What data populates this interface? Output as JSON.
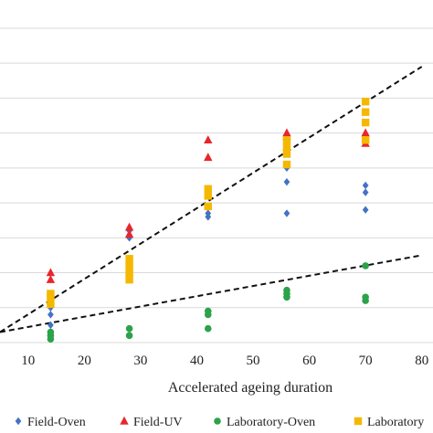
{
  "chart_data": {
    "type": "scatter",
    "title": "",
    "xlabel": "Accelerated ageing duration",
    "ylabel": "",
    "xlim": [
      5,
      82
    ],
    "ylim": [
      0,
      9.6
    ],
    "x_ticks": [
      10,
      20,
      30,
      40,
      50,
      60,
      70,
      80
    ],
    "grid": "horizontal",
    "legend_position": "bottom",
    "series": [
      {
        "name": "Field-Oven",
        "marker": "diamond",
        "color": "#4472c4",
        "points": [
          [
            14,
            1.0
          ],
          [
            14,
            0.8
          ],
          [
            14,
            0.5
          ],
          [
            28,
            3.2
          ],
          [
            28,
            3.0
          ],
          [
            42,
            3.9
          ],
          [
            42,
            3.6
          ],
          [
            42,
            3.7
          ],
          [
            56,
            5.0
          ],
          [
            56,
            4.6
          ],
          [
            56,
            3.7
          ],
          [
            70,
            4.5
          ],
          [
            70,
            4.3
          ],
          [
            70,
            3.8
          ]
        ]
      },
      {
        "name": "Field-UV",
        "marker": "triangle",
        "color": "#e8262b",
        "points": [
          [
            14,
            2.0
          ],
          [
            14,
            1.8
          ],
          [
            28,
            3.3
          ],
          [
            28,
            3.1
          ],
          [
            42,
            5.8
          ],
          [
            42,
            5.3
          ],
          [
            56,
            6.0
          ],
          [
            56,
            5.9
          ],
          [
            56,
            5.6
          ],
          [
            70,
            6.0
          ],
          [
            70,
            5.7
          ]
        ]
      },
      {
        "name": "Laboratory-Oven",
        "marker": "circle",
        "color": "#2ca24a",
        "points": [
          [
            14,
            0.3
          ],
          [
            14,
            0.2
          ],
          [
            14,
            0.1
          ],
          [
            28,
            0.4
          ],
          [
            28,
            0.2
          ],
          [
            42,
            0.9
          ],
          [
            42,
            0.8
          ],
          [
            42,
            0.4
          ],
          [
            56,
            1.5
          ],
          [
            56,
            1.4
          ],
          [
            56,
            1.3
          ],
          [
            70,
            2.2
          ],
          [
            70,
            1.3
          ],
          [
            70,
            1.2
          ]
        ]
      },
      {
        "name": "Laboratory",
        "marker": "square",
        "color": "#f5b800",
        "points": [
          [
            14,
            1.4
          ],
          [
            14,
            1.3
          ],
          [
            14,
            1.1
          ],
          [
            28,
            2.4
          ],
          [
            28,
            2.2
          ],
          [
            28,
            2.0
          ],
          [
            28,
            1.8
          ],
          [
            42,
            4.4
          ],
          [
            42,
            4.2
          ],
          [
            42,
            3.9
          ],
          [
            56,
            5.8
          ],
          [
            56,
            5.6
          ],
          [
            56,
            5.4
          ],
          [
            56,
            5.1
          ],
          [
            70,
            6.9
          ],
          [
            70,
            6.6
          ],
          [
            70,
            6.3
          ],
          [
            70,
            5.8
          ]
        ]
      }
    ],
    "trendlines": [
      {
        "style": "dashed",
        "color": "#111111",
        "from": [
          5,
          0.3
        ],
        "to": [
          80,
          7.9
        ]
      },
      {
        "style": "dashed",
        "color": "#111111",
        "from": [
          5,
          0.3
        ],
        "to": [
          80,
          2.5
        ]
      }
    ]
  }
}
